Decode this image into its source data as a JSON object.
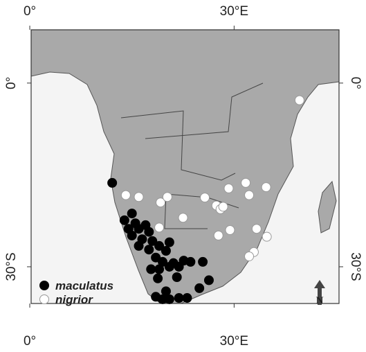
{
  "chart_data": {
    "type": "map",
    "xlim": [
      0.2,
      45.4
    ],
    "ylim": [
      -36.0,
      8.7
    ],
    "xticks": [
      {
        "value": 0,
        "label": "0°"
      },
      {
        "value": 30,
        "label": "30°E"
      }
    ],
    "yticks": [
      {
        "value": 0,
        "label": "0°"
      },
      {
        "value": -30,
        "label": "30°S"
      }
    ],
    "north_label": "N",
    "series": [
      {
        "name": "maculatus",
        "color": "#000000",
        "x": [
          12.1,
          15.0,
          13.9,
          15.5,
          14.5,
          16.0,
          17.0,
          17.5,
          15.0,
          16.5,
          18.0,
          16.0,
          17.5,
          19.0,
          20.5,
          20.0,
          18.5,
          19.5,
          21.1,
          22.6,
          23.6,
          17.8,
          19.0,
          20.5,
          21.9,
          25.4,
          21.6,
          18.8,
          20.0,
          18.5,
          19.5,
          20.5,
          21.9,
          23.1,
          24.9,
          26.3
        ],
        "y": [
          -16.3,
          -21.3,
          -22.4,
          -22.9,
          -23.8,
          -23.8,
          -23.2,
          -24.3,
          -24.9,
          -25.5,
          -25.8,
          -26.6,
          -27.2,
          -26.6,
          -26.0,
          -27.4,
          -28.5,
          -29.2,
          -29.4,
          -29.0,
          -29.2,
          -30.4,
          -30.4,
          -30.0,
          -30.0,
          -29.2,
          -31.7,
          -31.9,
          -34.0,
          -34.9,
          -35.3,
          -35.3,
          -35.1,
          -35.1,
          -33.5,
          -32.2
        ]
      },
      {
        "name": "nigrior",
        "color": "#ffffff",
        "x": [
          39.6,
          14.1,
          16.0,
          19.2,
          20.2,
          22.5,
          19.0,
          25.7,
          27.4,
          28.0,
          28.4,
          29.2,
          31.7,
          34.7,
          32.2,
          29.4,
          27.7,
          33.3,
          34.8,
          32.9,
          32.2
        ],
        "y": [
          -2.8,
          -18.3,
          -18.6,
          -19.5,
          -18.6,
          -22.0,
          -23.6,
          -18.7,
          -20.0,
          -20.6,
          -20.2,
          -17.2,
          -16.3,
          -17.0,
          -18.3,
          -24.0,
          -24.9,
          -23.8,
          -25.1,
          -27.6,
          -28.3
        ]
      }
    ]
  }
}
